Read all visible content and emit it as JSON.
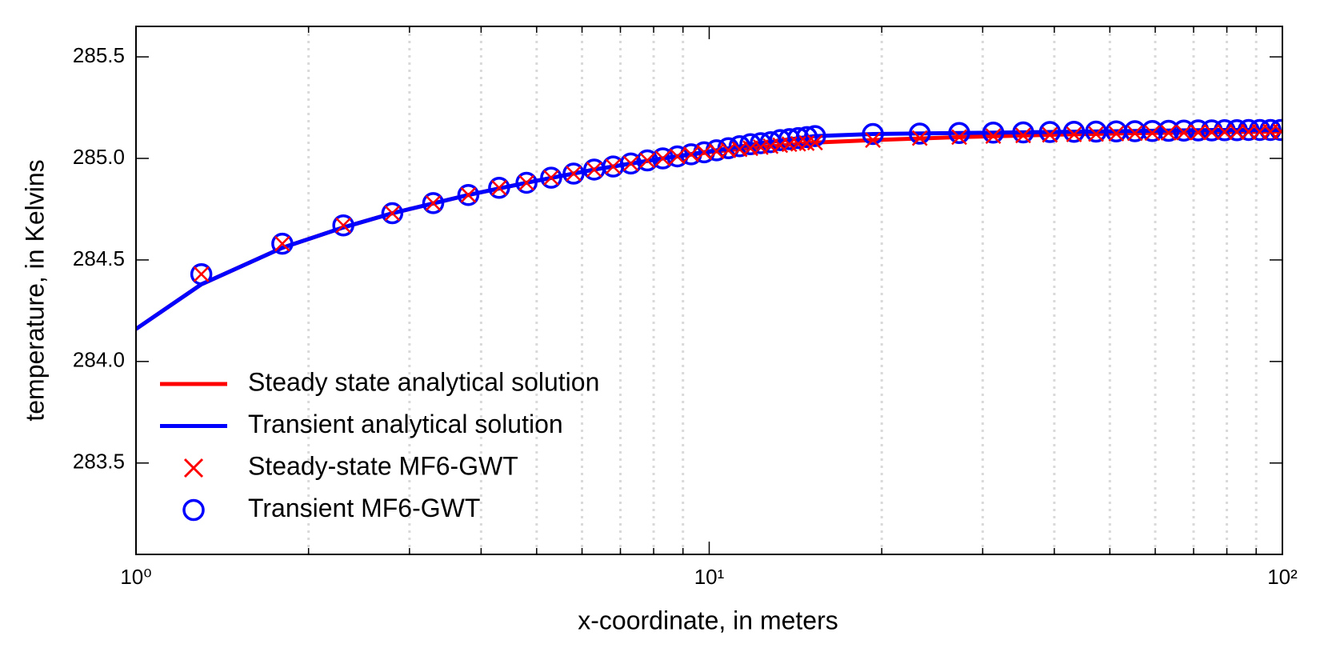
{
  "chart_data": {
    "type": "line",
    "xlabel": "x-coordinate, in meters",
    "ylabel": "temperature, in Kelvins",
    "xscale": "log",
    "xlim": [
      1,
      100
    ],
    "ylim": [
      283.05,
      285.65
    ],
    "xticks": [
      {
        "value": 1,
        "label": "10⁰"
      },
      {
        "value": 10,
        "label": "10¹"
      },
      {
        "value": 100,
        "label": "10²"
      }
    ],
    "xminorticks": [
      2,
      3,
      4,
      5,
      6,
      7,
      8,
      9,
      20,
      30,
      40,
      50,
      60,
      70,
      80,
      90
    ],
    "yticks": [
      {
        "value": 283.5,
        "label": "283.5"
      },
      {
        "value": 284,
        "label": "284.0"
      },
      {
        "value": 284.5,
        "label": "284.5"
      },
      {
        "value": 285,
        "label": "285.0"
      },
      {
        "value": 285.5,
        "label": "285.5"
      }
    ],
    "grid": "x-minor",
    "legend": "lower left",
    "series": [
      {
        "name": "Steady state analytical solution",
        "color": "#ff0000",
        "style": "line",
        "x": [
          1,
          1.3,
          1.8,
          2.3,
          2.8,
          3.8,
          4.8,
          6.3,
          8.3,
          10.3,
          12.3,
          15.3,
          19.3,
          27.3,
          39.3,
          55.3,
          75.3,
          99.3
        ],
        "values": [
          284.16,
          284.38,
          284.56,
          284.66,
          284.73,
          284.82,
          284.88,
          284.945,
          285.0,
          285.035,
          285.055,
          285.078,
          285.09,
          285.105,
          285.116,
          285.124,
          285.129,
          285.132
        ]
      },
      {
        "name": "Transient analytical solution",
        "color": "#0000ff",
        "style": "line",
        "x": [
          1,
          1.3,
          1.8,
          2.3,
          2.8,
          3.8,
          4.8,
          6.3,
          8.3,
          10.3,
          12.3,
          15.3,
          19.3,
          27.3,
          39.3,
          55.3,
          75.3,
          99.3
        ],
        "values": [
          284.16,
          284.38,
          284.56,
          284.66,
          284.73,
          284.82,
          284.88,
          284.945,
          285.0,
          285.04,
          285.075,
          285.11,
          285.12,
          285.125,
          285.13,
          285.135,
          285.14,
          285.14
        ]
      },
      {
        "name": "Steady-state MF6-GWT",
        "color": "#ff0000",
        "style": "x",
        "x": [
          1.3,
          1.8,
          2.3,
          2.8,
          3.3,
          3.8,
          4.3,
          4.8,
          5.3,
          5.8,
          6.3,
          6.8,
          7.3,
          7.8,
          8.3,
          8.8,
          9.3,
          9.8,
          10.3,
          10.8,
          11.3,
          11.8,
          12.3,
          12.8,
          13.3,
          13.8,
          14.3,
          14.8,
          15.3,
          19.3,
          23.3,
          27.3,
          31.3,
          35.3,
          39.3,
          43.3,
          47.3,
          51.3,
          55.3,
          59.3,
          63.3,
          67.3,
          71.3,
          75.3,
          79.3,
          83.3,
          87.3,
          91.3,
          95.3,
          99.3
        ],
        "values": [
          284.43,
          284.58,
          284.67,
          284.73,
          284.78,
          284.82,
          284.855,
          284.88,
          284.905,
          284.925,
          284.945,
          284.96,
          284.975,
          284.99,
          285.0,
          285.01,
          285.02,
          285.03,
          285.035,
          285.04,
          285.045,
          285.05,
          285.055,
          285.06,
          285.065,
          285.07,
          285.072,
          285.075,
          285.078,
          285.09,
          285.1,
          285.105,
          285.11,
          285.113,
          285.116,
          285.118,
          285.12,
          285.122,
          285.124,
          285.125,
          285.126,
          285.127,
          285.128,
          285.129,
          285.13,
          285.13,
          285.131,
          285.131,
          285.132,
          285.132
        ]
      },
      {
        "name": "Transient MF6-GWT",
        "color": "#0000ff",
        "style": "o",
        "x": [
          1.3,
          1.8,
          2.3,
          2.8,
          3.3,
          3.8,
          4.3,
          4.8,
          5.3,
          5.8,
          6.3,
          6.8,
          7.3,
          7.8,
          8.3,
          8.8,
          9.3,
          9.8,
          10.3,
          10.8,
          11.3,
          11.8,
          12.3,
          12.8,
          13.3,
          13.8,
          14.3,
          14.8,
          15.3,
          19.3,
          23.3,
          27.3,
          31.3,
          35.3,
          39.3,
          43.3,
          47.3,
          51.3,
          55.3,
          59.3,
          63.3,
          67.3,
          71.3,
          75.3,
          79.3,
          83.3,
          87.3,
          91.3,
          95.3,
          99.3
        ],
        "values": [
          284.43,
          284.58,
          284.67,
          284.73,
          284.78,
          284.82,
          284.855,
          284.88,
          284.905,
          284.925,
          284.945,
          284.96,
          284.975,
          284.99,
          285.0,
          285.01,
          285.02,
          285.03,
          285.04,
          285.05,
          285.06,
          285.07,
          285.075,
          285.08,
          285.09,
          285.095,
          285.1,
          285.105,
          285.11,
          285.12,
          285.122,
          285.125,
          285.127,
          285.128,
          285.13,
          285.131,
          285.132,
          285.133,
          285.134,
          285.135,
          285.136,
          285.137,
          285.138,
          285.138,
          285.139,
          285.139,
          285.14,
          285.14,
          285.14,
          285.14
        ]
      }
    ]
  }
}
